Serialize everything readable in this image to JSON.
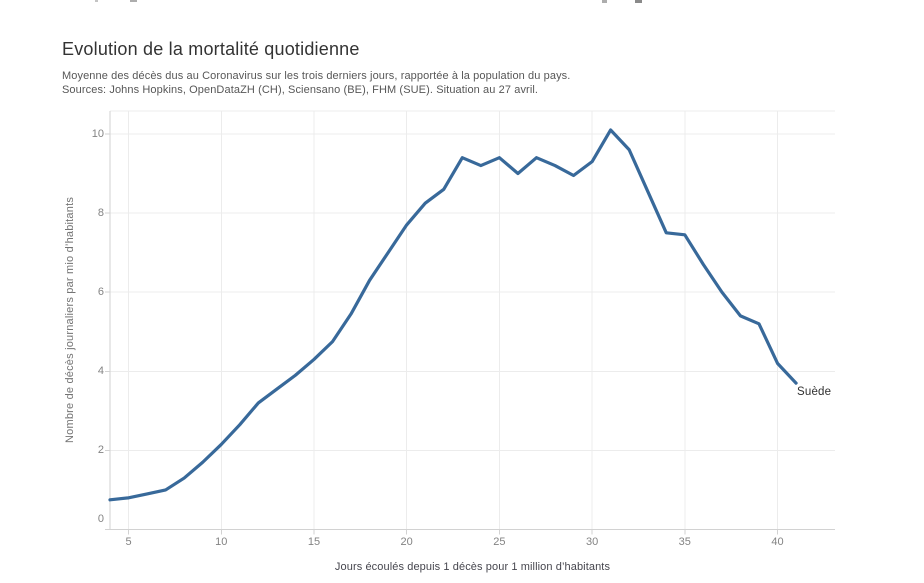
{
  "chart_data": {
    "type": "line",
    "title": "Evolution de la mortalité quotidienne",
    "subtitle": "Moyenne des décès dus au Coronavirus sur les trois derniers jours, rapportée à la population du pays.",
    "sources": "Sources: Johns Hopkins, OpenDataZH (CH), Sciensano (BE), FHM (SUE). Situation au 27 avril.",
    "xlabel": "Jours écoulés depuis 1 décès pour 1 million d’habitants",
    "ylabel": "Nombre de décès journaliers par mio d’habitants",
    "x_ticks": [
      5,
      10,
      15,
      20,
      25,
      30,
      35,
      40
    ],
    "y_ticks": [
      0,
      2,
      4,
      6,
      8,
      10
    ],
    "xlim": [
      4,
      43.1
    ],
    "ylim": [
      0,
      10.58
    ],
    "grid": true,
    "legend_position": "label-at-line-end",
    "series": [
      {
        "name": "Suède",
        "x": [
          4,
          5,
          6,
          7,
          8,
          9,
          10,
          11,
          12,
          13,
          14,
          15,
          16,
          17,
          18,
          19,
          20,
          21,
          22,
          23,
          24,
          25,
          26,
          27,
          28,
          29,
          30,
          31,
          32,
          33,
          34,
          35,
          36,
          37,
          38,
          39,
          40,
          41
        ],
        "y": [
          0.75,
          0.8,
          0.9,
          1.0,
          1.3,
          1.7,
          2.15,
          2.65,
          3.2,
          3.55,
          3.9,
          4.3,
          4.75,
          5.45,
          6.3,
          7.0,
          7.7,
          8.25,
          8.6,
          9.4,
          9.2,
          9.4,
          9.0,
          9.4,
          9.2,
          8.95,
          9.3,
          10.1,
          9.6,
          8.55,
          7.5,
          7.45,
          6.7,
          6.0,
          5.4,
          5.2,
          4.2,
          3.7
        ]
      }
    ],
    "colors": {
      "line": "#38699a",
      "grid": "#ececec",
      "axis": "#d2d2d2",
      "tick_label": "#838383",
      "title": "#333333",
      "subtitle": "#575757",
      "x_title": "#46464e",
      "y_title": "#737373",
      "series_label": "#303030"
    }
  }
}
